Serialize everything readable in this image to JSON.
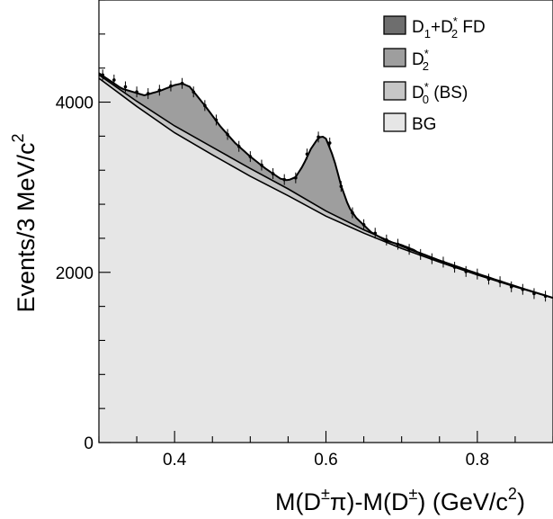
{
  "chart_data": {
    "type": "area",
    "xlim": [
      0.3,
      0.9
    ],
    "ylim": [
      0,
      5200
    ],
    "x_ticks": [
      0.4,
      0.6,
      0.8
    ],
    "x_tick_labels": [
      "0.4",
      "0.6",
      "0.8"
    ],
    "y_ticks": [
      0,
      2000,
      4000
    ],
    "y_tick_labels": [
      "0",
      "2000",
      "4000"
    ],
    "x_minor_step": 0.05,
    "y_minor_step": 400,
    "grid": false,
    "legend_placement": "top-right",
    "xlabel": {
      "prefix": "M(D",
      "sup1": "±",
      "mid1": "π)-M(D",
      "sup2": "±",
      "mid2": ") (GeV/c",
      "sup3": "2",
      "suffix": ")"
    },
    "ylabel": {
      "main": "Events/3 MeV/c",
      "sup": "2"
    },
    "legend": [
      {
        "key": "d1d2fd",
        "main": "D",
        "sub": "1",
        "mid": "+D",
        "sup2": "*",
        "sub2": "2",
        "tail": " FD",
        "color": "#6e6e6e"
      },
      {
        "key": "d2",
        "main": "D",
        "sup": "*",
        "sub": "2",
        "tail": "",
        "color": "#9e9e9e"
      },
      {
        "key": "d0bs",
        "main": "D",
        "sup": "*",
        "sub": "0",
        "tail": " (BS)",
        "color": "#c6c6c6"
      },
      {
        "key": "bg",
        "main": "BG",
        "tail": "",
        "color": "#e6e6e6"
      }
    ],
    "series": [
      {
        "name": "BG",
        "x": [
          0.3,
          0.35,
          0.4,
          0.45,
          0.5,
          0.55,
          0.6,
          0.65,
          0.7,
          0.75,
          0.8,
          0.85,
          0.9
        ],
        "y": [
          4280,
          3950,
          3640,
          3380,
          3130,
          2900,
          2660,
          2460,
          2280,
          2120,
          1970,
          1830,
          1700
        ]
      },
      {
        "name": "D0* (BS)",
        "x": [
          0.3,
          0.35,
          0.4,
          0.45,
          0.5,
          0.55,
          0.6,
          0.65,
          0.7,
          0.75,
          0.8,
          0.85,
          0.9
        ],
        "y": [
          4320,
          4010,
          3720,
          3470,
          3220,
          2980,
          2720,
          2500,
          2305,
          2135,
          1980,
          1835,
          1700
        ]
      },
      {
        "name": "D1+D2* FD",
        "x": [
          0.3,
          0.33,
          0.36,
          0.38,
          0.4,
          0.41,
          0.42,
          0.44,
          0.46,
          0.48,
          0.5,
          0.52,
          0.54,
          0.56,
          0.58,
          0.6,
          0.62,
          0.64,
          0.66,
          0.68,
          0.7,
          0.75,
          0.8,
          0.85,
          0.9
        ],
        "y": [
          4340,
          4160,
          4080,
          4130,
          4200,
          4220,
          4180,
          3960,
          3720,
          3520,
          3360,
          3220,
          3100,
          2985,
          2860,
          2740,
          2630,
          2525,
          2430,
          2345,
          2310,
          2140,
          1985,
          1838,
          1700
        ]
      },
      {
        "name": "D2*",
        "x": [
          0.54,
          0.55,
          0.56,
          0.57,
          0.58,
          0.59,
          0.595,
          0.6,
          0.61,
          0.62,
          0.63,
          0.64,
          0.66,
          0.68,
          0.7,
          0.72
        ],
        "y": [
          3100,
          3080,
          3120,
          3260,
          3450,
          3580,
          3600,
          3570,
          3350,
          3020,
          2770,
          2640,
          2470,
          2370,
          2320,
          2250
        ]
      },
      {
        "name": "Data",
        "x": [
          0.305,
          0.32,
          0.335,
          0.35,
          0.365,
          0.38,
          0.395,
          0.41,
          0.425,
          0.44,
          0.455,
          0.47,
          0.485,
          0.5,
          0.515,
          0.53,
          0.545,
          0.56,
          0.575,
          0.59,
          0.605,
          0.62,
          0.635,
          0.65,
          0.665,
          0.68,
          0.695,
          0.71,
          0.725,
          0.74,
          0.755,
          0.77,
          0.785,
          0.8,
          0.815,
          0.83,
          0.845,
          0.86,
          0.875,
          0.89
        ],
        "y": [
          4320,
          4260,
          4180,
          4120,
          4100,
          4140,
          4190,
          4220,
          4120,
          3960,
          3790,
          3620,
          3480,
          3360,
          3260,
          3160,
          3090,
          3110,
          3390,
          3590,
          3520,
          3010,
          2700,
          2560,
          2460,
          2380,
          2330,
          2270,
          2210,
          2160,
          2120,
          2060,
          2010,
          1980,
          1920,
          1890,
          1830,
          1800,
          1750,
          1720
        ]
      }
    ]
  }
}
